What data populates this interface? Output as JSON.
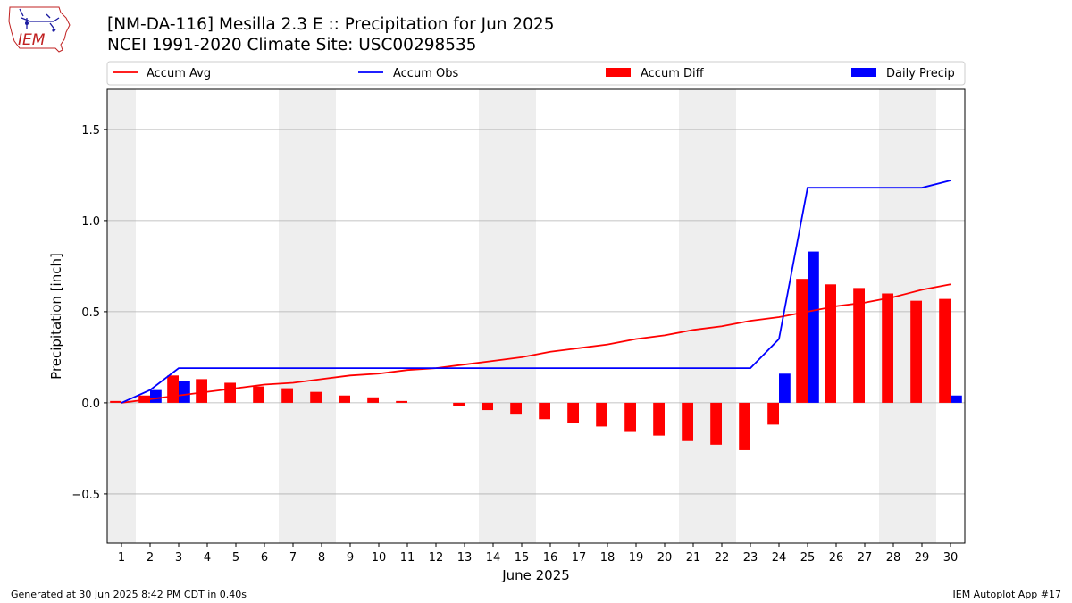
{
  "title": "[NM-DA-116] Mesilla 2.3 E :: Precipitation for Jun 2025",
  "subtitle": "NCEI 1991-2020 Climate Site: USC00298535",
  "logo_text": "IEM",
  "footer": {
    "left": "Generated at 30 Jun 2025 8:42 PM CDT in 0.40s",
    "right": "IEM Autoplot App #17"
  },
  "colors": {
    "avg": "#ff0000",
    "obs": "#0000ff",
    "diff": "#ff0000",
    "daily": "#0000ff",
    "weekend_shade": "#eeeeee",
    "grid": "#b0b0b0"
  },
  "chart_data": {
    "type": "bar",
    "xlabel": "June 2025",
    "ylabel": "Precipitation [inch]",
    "ylim": [
      -0.77,
      1.72
    ],
    "yticks": [
      -0.5,
      0.0,
      0.5,
      1.0,
      1.5
    ],
    "ytick_labels": [
      "−0.5",
      "0.0",
      "0.5",
      "1.0",
      "1.5"
    ],
    "xlim": [
      0.5,
      30.5
    ],
    "days": [
      1,
      2,
      3,
      4,
      5,
      6,
      7,
      8,
      9,
      10,
      11,
      12,
      13,
      14,
      15,
      16,
      17,
      18,
      19,
      20,
      21,
      22,
      23,
      24,
      25,
      26,
      27,
      28,
      29,
      30
    ],
    "shaded_days": [
      [
        0.5,
        1.5
      ],
      [
        6.5,
        8.5
      ],
      [
        13.5,
        15.5
      ],
      [
        20.5,
        22.5
      ],
      [
        27.5,
        29.5
      ]
    ],
    "grid": "horizontal",
    "legend_placement": "top, above plot",
    "legend": [
      "Accum Avg",
      "Accum Obs",
      "Accum Diff",
      "Daily Precip"
    ],
    "series": [
      {
        "name": "Accum Avg",
        "type": "line",
        "values": [
          0.0,
          0.02,
          0.04,
          0.06,
          0.08,
          0.1,
          0.11,
          0.13,
          0.15,
          0.16,
          0.18,
          0.19,
          0.21,
          0.23,
          0.25,
          0.28,
          0.3,
          0.32,
          0.35,
          0.37,
          0.4,
          0.42,
          0.45,
          0.47,
          0.5,
          0.53,
          0.55,
          0.58,
          0.62,
          0.65
        ]
      },
      {
        "name": "Accum Obs",
        "type": "line",
        "values": [
          0.0,
          0.07,
          0.19,
          0.19,
          0.19,
          0.19,
          0.19,
          0.19,
          0.19,
          0.19,
          0.19,
          0.19,
          0.19,
          0.19,
          0.19,
          0.19,
          0.19,
          0.19,
          0.19,
          0.19,
          0.19,
          0.19,
          0.19,
          0.35,
          1.18,
          1.18,
          1.18,
          1.18,
          1.18,
          1.22
        ]
      },
      {
        "name": "Accum Diff",
        "type": "bar",
        "values": [
          0.01,
          0.04,
          0.15,
          0.13,
          0.11,
          0.09,
          0.08,
          0.06,
          0.04,
          0.03,
          0.01,
          0.0,
          -0.02,
          -0.04,
          -0.06,
          -0.09,
          -0.11,
          -0.13,
          -0.16,
          -0.18,
          -0.21,
          -0.23,
          -0.26,
          -0.12,
          0.68,
          0.65,
          0.63,
          0.6,
          0.56,
          0.57
        ]
      },
      {
        "name": "Daily Precip",
        "type": "bar",
        "values": [
          0.0,
          0.07,
          0.12,
          0.0,
          0.0,
          0.0,
          0.0,
          0.0,
          0.0,
          0.0,
          0.0,
          0.0,
          0.0,
          0.0,
          0.0,
          0.0,
          0.0,
          0.0,
          0.0,
          0.0,
          0.0,
          0.0,
          0.0,
          0.16,
          0.83,
          0.0,
          0.0,
          0.0,
          0.0,
          0.04
        ]
      }
    ]
  }
}
